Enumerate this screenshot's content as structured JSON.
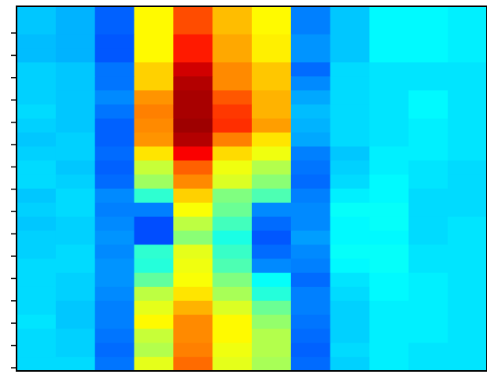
{
  "chart_data": {
    "type": "heatmap",
    "title": "",
    "xlabel": "",
    "ylabel": "",
    "n_cols": 12,
    "n_rows": 26,
    "colormap": "jet",
    "value_range": [
      0,
      1
    ],
    "y_tick_count": 16,
    "grid": false,
    "legend": "none",
    "values": [
      [
        0.32,
        0.3,
        0.22,
        0.63,
        0.8,
        0.69,
        0.63,
        0.25,
        0.32,
        0.37,
        0.37,
        0.36
      ],
      [
        0.32,
        0.3,
        0.22,
        0.63,
        0.8,
        0.69,
        0.63,
        0.25,
        0.32,
        0.37,
        0.37,
        0.36
      ],
      [
        0.31,
        0.3,
        0.21,
        0.63,
        0.85,
        0.71,
        0.64,
        0.27,
        0.32,
        0.37,
        0.37,
        0.36
      ],
      [
        0.31,
        0.3,
        0.21,
        0.63,
        0.85,
        0.71,
        0.64,
        0.27,
        0.32,
        0.37,
        0.37,
        0.36
      ],
      [
        0.33,
        0.32,
        0.24,
        0.67,
        0.92,
        0.74,
        0.68,
        0.23,
        0.34,
        0.35,
        0.35,
        0.35
      ],
      [
        0.33,
        0.32,
        0.24,
        0.67,
        0.95,
        0.74,
        0.68,
        0.26,
        0.34,
        0.35,
        0.35,
        0.35
      ],
      [
        0.33,
        0.32,
        0.26,
        0.73,
        0.96,
        0.79,
        0.7,
        0.29,
        0.34,
        0.35,
        0.37,
        0.35
      ],
      [
        0.34,
        0.32,
        0.24,
        0.75,
        0.96,
        0.82,
        0.7,
        0.31,
        0.34,
        0.35,
        0.37,
        0.35
      ],
      [
        0.33,
        0.32,
        0.22,
        0.74,
        0.97,
        0.83,
        0.72,
        0.3,
        0.34,
        0.35,
        0.36,
        0.35
      ],
      [
        0.32,
        0.33,
        0.22,
        0.73,
        0.95,
        0.75,
        0.65,
        0.29,
        0.34,
        0.35,
        0.36,
        0.35
      ],
      [
        0.33,
        0.33,
        0.23,
        0.65,
        0.88,
        0.66,
        0.61,
        0.25,
        0.32,
        0.36,
        0.36,
        0.35
      ],
      [
        0.34,
        0.32,
        0.22,
        0.57,
        0.78,
        0.61,
        0.55,
        0.24,
        0.33,
        0.36,
        0.35,
        0.34
      ],
      [
        0.34,
        0.33,
        0.23,
        0.53,
        0.74,
        0.59,
        0.51,
        0.23,
        0.34,
        0.37,
        0.35,
        0.34
      ],
      [
        0.32,
        0.34,
        0.26,
        0.42,
        0.67,
        0.5,
        0.45,
        0.25,
        0.36,
        0.37,
        0.34,
        0.34
      ],
      [
        0.33,
        0.34,
        0.25,
        0.25,
        0.62,
        0.48,
        0.26,
        0.26,
        0.38,
        0.38,
        0.34,
        0.34
      ],
      [
        0.32,
        0.33,
        0.26,
        0.2,
        0.56,
        0.44,
        0.23,
        0.26,
        0.37,
        0.38,
        0.34,
        0.35
      ],
      [
        0.33,
        0.33,
        0.27,
        0.2,
        0.51,
        0.4,
        0.21,
        0.28,
        0.37,
        0.37,
        0.34,
        0.35
      ],
      [
        0.33,
        0.34,
        0.26,
        0.42,
        0.6,
        0.43,
        0.23,
        0.26,
        0.38,
        0.38,
        0.35,
        0.35
      ],
      [
        0.34,
        0.34,
        0.27,
        0.41,
        0.61,
        0.45,
        0.26,
        0.25,
        0.37,
        0.38,
        0.35,
        0.35
      ],
      [
        0.34,
        0.33,
        0.27,
        0.47,
        0.62,
        0.5,
        0.38,
        0.23,
        0.35,
        0.37,
        0.36,
        0.35
      ],
      [
        0.34,
        0.33,
        0.26,
        0.56,
        0.65,
        0.54,
        0.41,
        0.25,
        0.34,
        0.37,
        0.36,
        0.35
      ],
      [
        0.34,
        0.32,
        0.25,
        0.6,
        0.7,
        0.59,
        0.48,
        0.25,
        0.33,
        0.36,
        0.36,
        0.35
      ],
      [
        0.35,
        0.32,
        0.25,
        0.63,
        0.74,
        0.63,
        0.52,
        0.24,
        0.33,
        0.36,
        0.36,
        0.35
      ],
      [
        0.34,
        0.33,
        0.24,
        0.57,
        0.74,
        0.63,
        0.55,
        0.23,
        0.33,
        0.36,
        0.36,
        0.35
      ],
      [
        0.34,
        0.33,
        0.23,
        0.55,
        0.75,
        0.61,
        0.55,
        0.22,
        0.34,
        0.36,
        0.35,
        0.35
      ],
      [
        0.34,
        0.34,
        0.24,
        0.6,
        0.77,
        0.6,
        0.54,
        0.23,
        0.33,
        0.36,
        0.35,
        0.35
      ]
    ]
  }
}
